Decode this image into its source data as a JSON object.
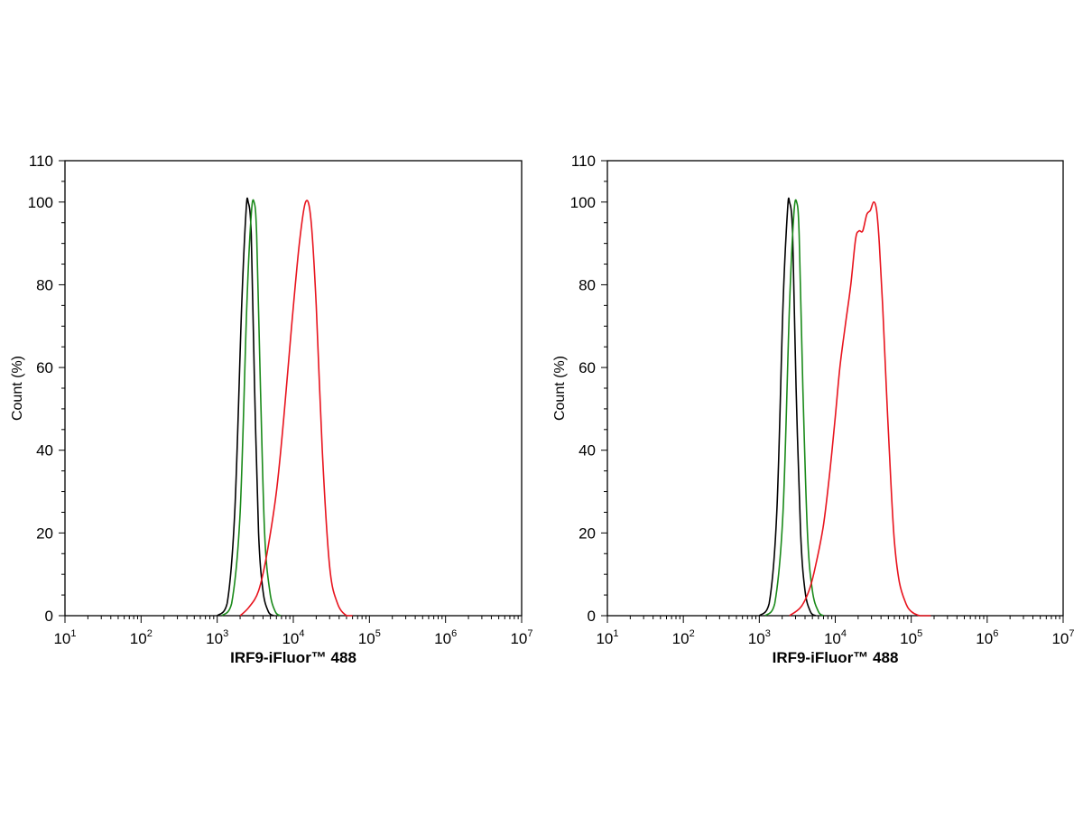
{
  "chart_data": [
    {
      "type": "line",
      "title": "",
      "xlabel": "IRF9-iFluor™ 488",
      "ylabel": "Count  (%)",
      "x_scale": "log",
      "xlim": [
        10,
        10000000
      ],
      "ylim": [
        0,
        110
      ],
      "x_ticks": [
        {
          "base": "10",
          "exp": "1",
          "value": 10
        },
        {
          "base": "10",
          "exp": "2",
          "value": 100
        },
        {
          "base": "10",
          "exp": "3",
          "value": 1000
        },
        {
          "base": "10",
          "exp": "4",
          "value": 10000
        },
        {
          "base": "10",
          "exp": "5",
          "value": 100000
        },
        {
          "base": "10",
          "exp": "6",
          "value": 1000000
        },
        {
          "base": "10",
          "exp": "7",
          "value": 10000000
        }
      ],
      "y_ticks": [
        0,
        20,
        40,
        60,
        80,
        100,
        110
      ],
      "grid": false,
      "legend": "none",
      "series": [
        {
          "color": "#000000",
          "x": [
            1000,
            1350,
            1700,
            2100,
            2400,
            2550,
            2800,
            3100,
            3500,
            4000,
            4700,
            5500
          ],
          "y": [
            0,
            3,
            25,
            75,
            98,
            100,
            92,
            55,
            20,
            6,
            1,
            0
          ]
        },
        {
          "color": "#1a8a1a",
          "x": [
            1150,
            1550,
            2000,
            2450,
            2800,
            3050,
            3300,
            3700,
            4200,
            4900,
            5800,
            6800
          ],
          "y": [
            0,
            3,
            25,
            75,
            97,
            100,
            92,
            55,
            20,
            6,
            1,
            0
          ]
        },
        {
          "color": "#e8141e",
          "x": [
            2000,
            2600,
            3500,
            4500,
            6000,
            7500,
            9500,
            12000,
            14500,
            17000,
            20000,
            24000,
            30000,
            38000,
            50000,
            60000
          ],
          "y": [
            0,
            2,
            6,
            15,
            30,
            48,
            70,
            90,
            100,
            96,
            75,
            40,
            12,
            3,
            0,
            0
          ]
        }
      ]
    },
    {
      "type": "line",
      "title": "",
      "xlabel": "IRF9-iFluor™ 488",
      "ylabel": "Count  (%)",
      "x_scale": "log",
      "xlim": [
        10,
        10000000
      ],
      "ylim": [
        0,
        110
      ],
      "x_ticks": [
        {
          "base": "10",
          "exp": "1",
          "value": 10
        },
        {
          "base": "10",
          "exp": "2",
          "value": 100
        },
        {
          "base": "10",
          "exp": "3",
          "value": 1000
        },
        {
          "base": "10",
          "exp": "4",
          "value": 10000
        },
        {
          "base": "10",
          "exp": "5",
          "value": 100000
        },
        {
          "base": "10",
          "exp": "6",
          "value": 1000000
        },
        {
          "base": "10",
          "exp": "7",
          "value": 10000000
        }
      ],
      "y_ticks": [
        0,
        20,
        40,
        60,
        80,
        100,
        110
      ],
      "grid": false,
      "legend": "none",
      "series": [
        {
          "color": "#000000",
          "x": [
            1000,
            1350,
            1700,
            2050,
            2350,
            2500,
            2750,
            3050,
            3500,
            4000,
            4700,
            5500
          ],
          "y": [
            0,
            3,
            25,
            75,
            98,
            100,
            92,
            55,
            20,
            6,
            1,
            0
          ]
        },
        {
          "color": "#1a8a1a",
          "x": [
            1200,
            1600,
            2050,
            2500,
            2850,
            3100,
            3350,
            3750,
            4300,
            5000,
            6000,
            7000
          ],
          "y": [
            0,
            3,
            25,
            75,
            97,
            100,
            92,
            55,
            20,
            6,
            1,
            0
          ]
        },
        {
          "color": "#e8141e",
          "x": [
            2500,
            3500,
            4500,
            5500,
            7000,
            8500,
            10000,
            11500,
            13500,
            16000,
            18500,
            20500,
            23000,
            26000,
            29000,
            32000,
            35000,
            38000,
            42000,
            47000,
            53000,
            60000,
            70000,
            85000,
            100000,
            130000,
            180000
          ],
          "y": [
            0,
            2,
            6,
            12,
            22,
            35,
            48,
            60,
            70,
            80,
            91,
            93,
            93,
            97,
            98,
            100,
            98,
            90,
            75,
            55,
            35,
            18,
            8,
            3,
            1,
            0,
            0
          ]
        }
      ]
    }
  ]
}
